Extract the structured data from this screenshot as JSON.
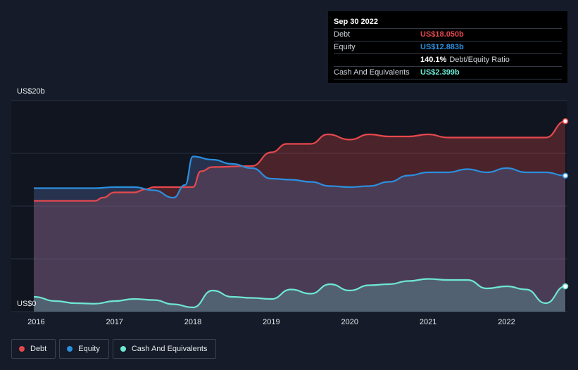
{
  "colors": {
    "debt": "#e5484d",
    "equity": "#2b8fde",
    "cash": "#6ee7d4",
    "grid": "#2a3140"
  },
  "tooltip": {
    "date": "Sep 30 2022",
    "rows": {
      "debt": {
        "label": "Debt",
        "value": "US$18.050b"
      },
      "equity": {
        "label": "Equity",
        "value": "US$12.883b"
      },
      "ratio": {
        "label": "",
        "value": "140.1%",
        "text": "Debt/Equity Ratio"
      },
      "cash": {
        "label": "Cash And Equivalents",
        "value": "US$2.399b"
      }
    }
  },
  "legend": {
    "debt": "Debt",
    "equity": "Equity",
    "cash": "Cash And Equivalents"
  },
  "chart_data": {
    "type": "area",
    "ylim": [
      0,
      20
    ],
    "y_tick_labels": [
      {
        "value": 20,
        "label": "US$20b"
      },
      {
        "value": 0,
        "label": "US$0"
      }
    ],
    "x_tick_labels": [
      "2016",
      "2017",
      "2018",
      "2019",
      "2020",
      "2021",
      "2022"
    ],
    "x_ticks": [
      2016,
      2017,
      2018,
      2019,
      2020,
      2021,
      2022
    ],
    "xlim": [
      2015.97,
      2022.75
    ],
    "series": [
      {
        "key": "debt",
        "name": "Debt",
        "points": [
          [
            2015.97,
            10.5
          ],
          [
            2016.25,
            10.5
          ],
          [
            2016.75,
            10.5
          ],
          [
            2016.85,
            10.8
          ],
          [
            2017.0,
            11.3
          ],
          [
            2017.25,
            11.3
          ],
          [
            2017.4,
            11.6
          ],
          [
            2017.5,
            11.8
          ],
          [
            2017.75,
            11.8
          ],
          [
            2018.0,
            11.8
          ],
          [
            2018.1,
            13.3
          ],
          [
            2018.25,
            13.7
          ],
          [
            2018.75,
            13.8
          ],
          [
            2019.0,
            15.1
          ],
          [
            2019.2,
            15.9
          ],
          [
            2019.5,
            15.9
          ],
          [
            2019.72,
            16.8
          ],
          [
            2020.0,
            16.3
          ],
          [
            2020.25,
            16.8
          ],
          [
            2020.5,
            16.6
          ],
          [
            2020.75,
            16.6
          ],
          [
            2021.0,
            16.8
          ],
          [
            2021.25,
            16.5
          ],
          [
            2021.5,
            16.5
          ],
          [
            2021.75,
            16.5
          ],
          [
            2022.0,
            16.5
          ],
          [
            2022.25,
            16.5
          ],
          [
            2022.5,
            16.5
          ],
          [
            2022.75,
            18.05
          ]
        ]
      },
      {
        "key": "equity",
        "name": "Equity",
        "points": [
          [
            2015.97,
            11.7
          ],
          [
            2016.25,
            11.7
          ],
          [
            2016.75,
            11.7
          ],
          [
            2017.0,
            11.8
          ],
          [
            2017.25,
            11.8
          ],
          [
            2017.5,
            11.5
          ],
          [
            2017.75,
            10.8
          ],
          [
            2017.9,
            12.0
          ],
          [
            2018.0,
            14.7
          ],
          [
            2018.25,
            14.4
          ],
          [
            2018.5,
            14.0
          ],
          [
            2018.75,
            13.6
          ],
          [
            2019.0,
            12.6
          ],
          [
            2019.25,
            12.5
          ],
          [
            2019.5,
            12.3
          ],
          [
            2019.75,
            11.9
          ],
          [
            2020.0,
            11.8
          ],
          [
            2020.25,
            11.9
          ],
          [
            2020.5,
            12.3
          ],
          [
            2020.75,
            12.9
          ],
          [
            2021.0,
            13.2
          ],
          [
            2021.25,
            13.2
          ],
          [
            2021.5,
            13.5
          ],
          [
            2021.75,
            13.2
          ],
          [
            2022.0,
            13.6
          ],
          [
            2022.25,
            13.2
          ],
          [
            2022.5,
            13.2
          ],
          [
            2022.75,
            12.883
          ]
        ]
      },
      {
        "key": "cash",
        "name": "Cash And Equivalents",
        "points": [
          [
            2015.97,
            1.4
          ],
          [
            2016.25,
            1.0
          ],
          [
            2016.5,
            0.8
          ],
          [
            2016.75,
            0.75
          ],
          [
            2017.0,
            1.0
          ],
          [
            2017.25,
            1.2
          ],
          [
            2017.5,
            1.1
          ],
          [
            2017.75,
            0.7
          ],
          [
            2018.0,
            0.4
          ],
          [
            2018.25,
            2.0
          ],
          [
            2018.5,
            1.4
          ],
          [
            2018.75,
            1.3
          ],
          [
            2019.0,
            1.2
          ],
          [
            2019.25,
            2.1
          ],
          [
            2019.5,
            1.7
          ],
          [
            2019.75,
            2.6
          ],
          [
            2020.0,
            2.0
          ],
          [
            2020.25,
            2.5
          ],
          [
            2020.5,
            2.6
          ],
          [
            2020.75,
            2.9
          ],
          [
            2021.0,
            3.1
          ],
          [
            2021.25,
            3.0
          ],
          [
            2021.5,
            3.0
          ],
          [
            2021.75,
            2.2
          ],
          [
            2022.0,
            2.4
          ],
          [
            2022.25,
            2.1
          ],
          [
            2022.5,
            0.8
          ],
          [
            2022.75,
            2.399
          ]
        ]
      }
    ]
  }
}
